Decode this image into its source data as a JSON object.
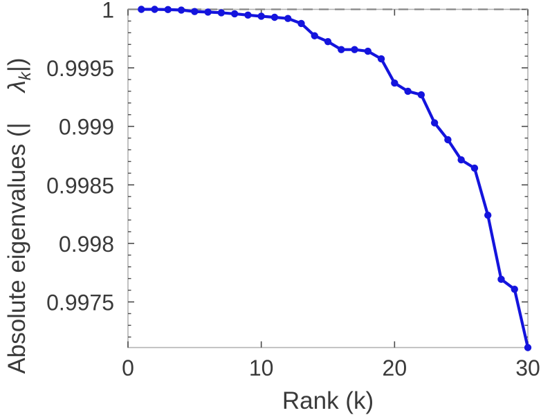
{
  "chart_data": {
    "type": "line",
    "title": "",
    "xlabel": "Rank (k)",
    "ylabel": "Absolute eigenvalues (| λk|)",
    "ylabel_parts": {
      "prefix": "Absolute eigenvalues (|",
      "lambda": "λ",
      "subscript": "k",
      "suffix": "|)"
    },
    "xlim": [
      0,
      30
    ],
    "ylim": [
      0.99711,
      1.0
    ],
    "xticks": {
      "values": [
        0,
        10,
        20,
        30
      ],
      "labels": [
        "0",
        "10",
        "20",
        "30"
      ]
    },
    "yticks": {
      "values": [
        1.0,
        0.9995,
        0.999,
        0.9985,
        0.998,
        0.9975
      ],
      "labels": [
        "1",
        "0.9995",
        "0.999",
        "0.9985",
        "0.998",
        "0.9975"
      ]
    },
    "y_minor_step": 0.0001,
    "grid": false,
    "legend": null,
    "reference_line": {
      "y": 1.0,
      "style": "dashed",
      "color": "#858585"
    },
    "series": [
      {
        "name": "absolute-eigenvalues",
        "marker": "circle",
        "color": "#1414dd",
        "x": [
          1,
          2,
          3,
          4,
          5,
          6,
          7,
          8,
          9,
          10,
          11,
          12,
          13,
          14,
          15,
          16,
          17,
          18,
          19,
          20,
          21,
          22,
          23,
          24,
          25,
          26,
          27,
          28,
          29,
          30
        ],
        "y": [
          1.0,
          1.0,
          0.999998,
          0.999994,
          0.999981,
          0.999977,
          0.999971,
          0.999962,
          0.999951,
          0.999941,
          0.999932,
          0.999922,
          0.999879,
          0.999774,
          0.999724,
          0.999656,
          0.999656,
          0.999642,
          0.999577,
          0.99937,
          0.9993,
          0.99927,
          0.99903,
          0.998886,
          0.998714,
          0.998643,
          0.998241,
          0.997693,
          0.997608,
          0.99711
        ]
      }
    ],
    "colors": {
      "line": "#1414dd",
      "frame": "#b2b2b2",
      "ticks": "#4a4a4a",
      "text": "#3a3a3a",
      "reference": "#858585",
      "background": "#ffffff"
    }
  }
}
